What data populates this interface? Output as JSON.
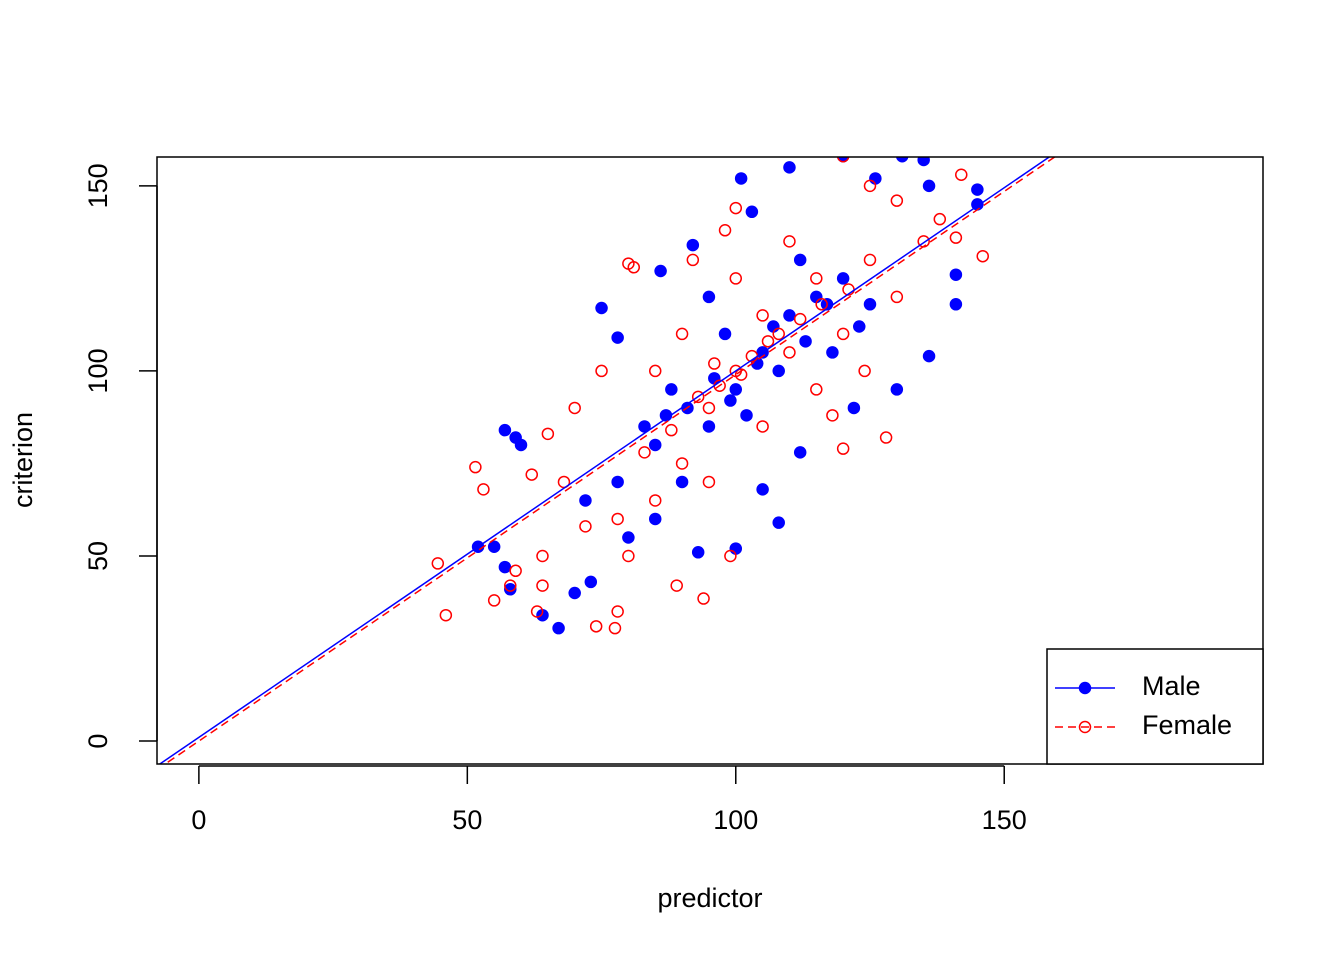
{
  "chart_data": {
    "type": "scatter",
    "x_label": "predictor",
    "y_label": "criterion",
    "xlim": [
      -7.8,
      198.2
    ],
    "ylim": [
      -6.2,
      157.8
    ],
    "xticks": [
      0,
      50,
      100,
      150
    ],
    "yticks": [
      0,
      50,
      100,
      150
    ],
    "grid": false,
    "legend_position": "bottom-right",
    "series": [
      {
        "name": "Male",
        "color": "#0000ff",
        "marker": "filled",
        "linestyle": "solid",
        "fit": {
          "intercept": 1.0,
          "slope": 0.99
        },
        "x": [
          67,
          64,
          52,
          55,
          57,
          58,
          57,
          59,
          60,
          70,
          73,
          78,
          75,
          86,
          92,
          101,
          103,
          110,
          120,
          126,
          131,
          135,
          136,
          145,
          145,
          141,
          141,
          136,
          130,
          122,
          112,
          108,
          105,
          93,
          100,
          80,
          85,
          90,
          95,
          100,
          105,
          110,
          115,
          120,
          125,
          98,
          102,
          88,
          108,
          95,
          112,
          118,
          85,
          78,
          72,
          96,
          104,
          99,
          107,
          113,
          91,
          87,
          117,
          123,
          83
        ],
        "y": [
          30.5,
          34,
          52.5,
          52.5,
          47,
          41,
          84,
          82,
          80,
          40,
          43,
          109,
          117,
          127,
          134,
          152,
          143,
          155,
          158,
          152,
          158,
          157,
          150,
          149,
          145,
          126,
          118,
          104,
          95,
          90,
          78,
          59,
          68,
          51,
          52,
          55,
          60,
          70,
          85,
          95,
          105,
          115,
          120,
          125,
          118,
          110,
          88,
          95,
          100,
          120,
          130,
          105,
          80,
          70,
          65,
          98,
          102,
          92,
          112,
          108,
          90,
          88,
          118,
          112,
          85
        ]
      },
      {
        "name": "Female",
        "color": "#ff0000",
        "marker": "open",
        "linestyle": "dashed",
        "fit": {
          "intercept": 0.0,
          "slope": 0.99
        },
        "x": [
          44.5,
          46,
          51.5,
          53,
          55,
          59,
          58,
          62,
          65,
          64,
          64,
          63,
          74,
          77.5,
          78,
          80,
          89,
          94,
          99,
          128,
          120,
          142,
          146,
          141,
          138,
          130,
          120,
          125,
          100,
          98,
          80,
          81,
          75,
          70,
          85,
          90,
          95,
          100,
          105,
          110,
          115,
          120,
          90,
          85,
          95,
          105,
          110,
          125,
          130,
          135,
          78,
          72,
          68,
          100,
          115,
          118,
          124,
          92,
          97,
          103,
          108,
          88,
          93,
          112,
          101,
          106,
          96,
          83,
          116,
          121
        ],
        "y": [
          48,
          34,
          74,
          68,
          38,
          46,
          42,
          72,
          83,
          50,
          42,
          35,
          31,
          30.5,
          35,
          50,
          42,
          38.5,
          50,
          82,
          79,
          153,
          131,
          136,
          141,
          146,
          158,
          150,
          144,
          138,
          129,
          128,
          100,
          90,
          100,
          110,
          90,
          100,
          115,
          105,
          125,
          110,
          75,
          65,
          70,
          85,
          135,
          130,
          120,
          135,
          60,
          58,
          70,
          125,
          95,
          88,
          100,
          130,
          96,
          104,
          110,
          84,
          93,
          114,
          99,
          108,
          102,
          78,
          118,
          122
        ]
      }
    ]
  }
}
